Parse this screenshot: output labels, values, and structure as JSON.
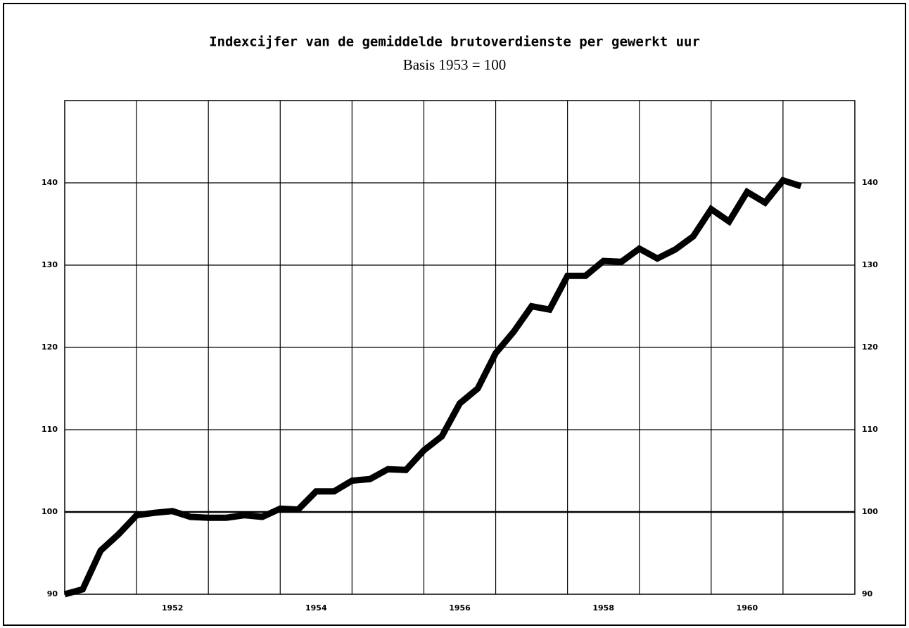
{
  "chart_data": {
    "type": "line",
    "title": "Indexcijfer van de gemiddelde brutoverdienste per gewerkt uur",
    "subtitle": "Basis 1953 = 100",
    "x": [
      1951,
      1951.25,
      1951.5,
      1951.75,
      1952,
      1952.25,
      1952.5,
      1952.75,
      1953,
      1953.25,
      1953.5,
      1953.75,
      1954,
      1954.25,
      1954.5,
      1954.75,
      1955,
      1955.25,
      1955.5,
      1955.75,
      1956,
      1956.25,
      1956.5,
      1956.75,
      1957,
      1957.25,
      1957.5,
      1957.75,
      1958,
      1958.25,
      1958.5,
      1958.75,
      1959,
      1959.25,
      1959.5,
      1959.75,
      1960,
      1960.25,
      1960.5,
      1960.75,
      1961,
      1961.25
    ],
    "values": [
      90,
      90.6,
      95.3,
      97.3,
      99.6,
      99.9,
      100.1,
      99.4,
      99.3,
      99.3,
      99.6,
      99.4,
      100.4,
      100.3,
      102.5,
      102.5,
      103.8,
      104.0,
      105.2,
      105.1,
      107.5,
      109.2,
      113.2,
      115.0,
      119.3,
      121.9,
      125.0,
      124.6,
      128.7,
      128.7,
      130.5,
      130.4,
      132.0,
      130.8,
      131.9,
      133.5,
      136.8,
      135.3,
      138.9,
      137.6,
      140.3,
      139.6
    ],
    "color": "#000000",
    "xlim": [
      1951,
      1962
    ],
    "xgrid": [
      1952,
      1953,
      1954,
      1955,
      1956,
      1957,
      1958,
      1959,
      1960,
      1961
    ],
    "xticks": [
      {
        "value": 1952.5,
        "label": "1952"
      },
      {
        "value": 1954.5,
        "label": "1954"
      },
      {
        "value": 1956.5,
        "label": "1956"
      },
      {
        "value": 1958.5,
        "label": "1958"
      },
      {
        "value": 1960.5,
        "label": "1960"
      }
    ],
    "ylim": [
      90,
      150
    ],
    "yticks": [
      90,
      100,
      110,
      120,
      130,
      140
    ],
    "ygrid": [
      100,
      110,
      120,
      130,
      140
    ],
    "reference_line": 100,
    "grid": true
  }
}
